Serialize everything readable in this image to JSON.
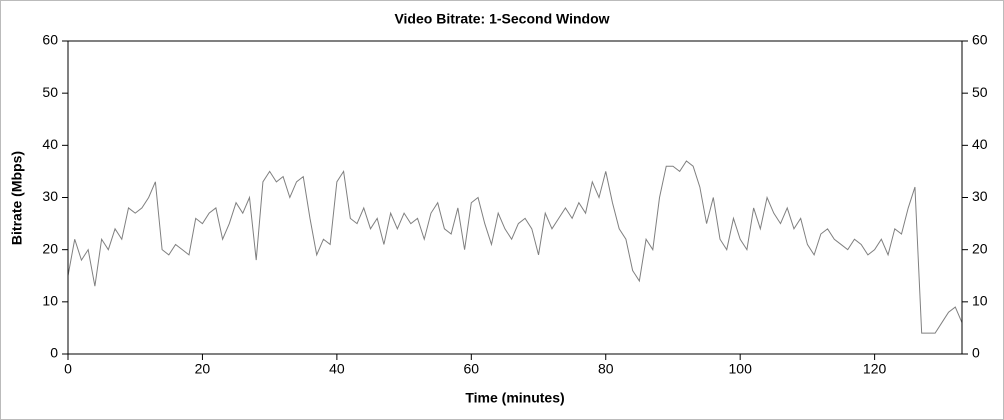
{
  "chart_data": {
    "type": "line",
    "title": "Video Bitrate: 1-Second Window",
    "xlabel": "Time (minutes)",
    "ylabel": "Bitrate (Mbps)",
    "x": [
      0,
      1,
      2,
      3,
      4,
      5,
      6,
      7,
      8,
      9,
      10,
      11,
      12,
      13,
      14,
      15,
      16,
      17,
      18,
      19,
      20,
      21,
      22,
      23,
      24,
      25,
      26,
      27,
      28,
      29,
      30,
      31,
      32,
      33,
      34,
      35,
      36,
      37,
      38,
      39,
      40,
      41,
      42,
      43,
      44,
      45,
      46,
      47,
      48,
      49,
      50,
      51,
      52,
      53,
      54,
      55,
      56,
      57,
      58,
      59,
      60,
      61,
      62,
      63,
      64,
      65,
      66,
      67,
      68,
      69,
      70,
      71,
      72,
      73,
      74,
      75,
      76,
      77,
      78,
      79,
      80,
      81,
      82,
      83,
      84,
      85,
      86,
      87,
      88,
      89,
      90,
      91,
      92,
      93,
      94,
      95,
      96,
      97,
      98,
      99,
      100,
      101,
      102,
      103,
      104,
      105,
      106,
      107,
      108,
      109,
      110,
      111,
      112,
      113,
      114,
      115,
      116,
      117,
      118,
      119,
      120,
      121,
      122,
      123,
      124,
      125,
      126,
      127,
      128,
      129,
      130,
      131,
      132,
      133
    ],
    "series": [
      {
        "name": "Video Bitrate",
        "color": "#808080",
        "values": [
          15,
          22,
          18,
          20,
          13,
          22,
          20,
          24,
          22,
          28,
          27,
          28,
          30,
          33,
          20,
          19,
          21,
          20,
          19,
          26,
          25,
          27,
          28,
          22,
          25,
          29,
          27,
          30,
          18,
          33,
          35,
          33,
          34,
          30,
          33,
          34,
          26,
          19,
          22,
          21,
          33,
          35,
          26,
          25,
          28,
          24,
          26,
          21,
          27,
          24,
          27,
          25,
          26,
          22,
          27,
          29,
          24,
          23,
          28,
          20,
          29,
          30,
          25,
          21,
          27,
          24,
          22,
          25,
          26,
          24,
          19,
          27,
          24,
          26,
          28,
          26,
          29,
          27,
          33,
          30,
          35,
          29,
          24,
          22,
          16,
          14,
          22,
          20,
          30,
          36,
          36,
          35,
          37,
          36,
          32,
          25,
          30,
          22,
          20,
          26,
          22,
          20,
          28,
          24,
          30,
          27,
          25,
          28,
          24,
          26,
          21,
          19,
          23,
          24,
          22,
          21,
          20,
          22,
          21,
          19,
          20,
          22,
          19,
          24,
          23,
          28,
          32,
          4,
          4,
          4,
          6,
          8,
          9,
          6
        ]
      }
    ],
    "xlim": [
      0,
      133
    ],
    "xticks": [
      0,
      20,
      40,
      60,
      80,
      100,
      120
    ],
    "ylim": [
      0,
      60
    ],
    "yticks": [
      0,
      10,
      20,
      30,
      40,
      50,
      60
    ],
    "y2lim": [
      0,
      60
    ],
    "y2ticks": [
      0,
      10,
      20,
      30,
      40,
      50,
      60
    ]
  }
}
